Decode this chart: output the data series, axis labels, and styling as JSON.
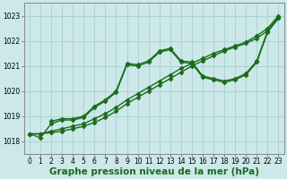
{
  "xlabel": "Graphe pression niveau de la mer (hPa)",
  "background_color": "#cce8e8",
  "grid_color": "#aad4d4",
  "line_color": "#1a6b1a",
  "xlim": [
    -0.5,
    23.5
  ],
  "ylim": [
    1017.5,
    1023.5
  ],
  "xticks": [
    0,
    1,
    2,
    3,
    4,
    5,
    6,
    7,
    8,
    9,
    10,
    11,
    12,
    13,
    14,
    15,
    16,
    17,
    18,
    19,
    20,
    21,
    22,
    23
  ],
  "yticks": [
    1018,
    1019,
    1020,
    1021,
    1022,
    1023
  ],
  "lines": [
    {
      "x": [
        0,
        1,
        2,
        3,
        4,
        5,
        6,
        7,
        8,
        9,
        10,
        11,
        12,
        13,
        14,
        15,
        16,
        17,
        18,
        19,
        20,
        21,
        22,
        23
      ],
      "y": [
        1018.3,
        1018.3,
        1018.35,
        1018.4,
        1018.5,
        1018.6,
        1018.75,
        1018.95,
        1019.2,
        1019.5,
        1019.75,
        1020.0,
        1020.25,
        1020.5,
        1020.75,
        1021.0,
        1021.2,
        1021.4,
        1021.6,
        1021.75,
        1021.9,
        1022.1,
        1022.4,
        1022.9
      ]
    },
    {
      "x": [
        0,
        1,
        2,
        3,
        4,
        5,
        6,
        7,
        8,
        9,
        10,
        11,
        12,
        13,
        14,
        15,
        16,
        17,
        18,
        19,
        20,
        21,
        22,
        23
      ],
      "y": [
        1018.3,
        1018.3,
        1018.4,
        1018.5,
        1018.6,
        1018.7,
        1018.9,
        1019.1,
        1019.35,
        1019.65,
        1019.9,
        1020.15,
        1020.4,
        1020.65,
        1020.9,
        1021.1,
        1021.3,
        1021.5,
        1021.65,
        1021.8,
        1021.95,
        1022.2,
        1022.5,
        1023.0
      ]
    },
    {
      "x": [
        0,
        1,
        2,
        3,
        4,
        5,
        6,
        7,
        8,
        9,
        10,
        11,
        12,
        13,
        14,
        15,
        16,
        17,
        18,
        19,
        20,
        21,
        22,
        23
      ],
      "y": [
        1018.3,
        1018.15,
        1018.7,
        1018.85,
        1018.85,
        1018.95,
        1019.35,
        1019.6,
        1019.95,
        1021.05,
        1021.0,
        1021.15,
        1021.55,
        1021.65,
        1021.15,
        1021.1,
        1020.55,
        1020.45,
        1020.35,
        1020.45,
        1020.65,
        1021.15,
        1022.35,
        1022.9
      ]
    },
    {
      "x": [
        2,
        3,
        4,
        5,
        6,
        7,
        8,
        9,
        10,
        11,
        12,
        13,
        14,
        15,
        16,
        17,
        18,
        19,
        20,
        21,
        22,
        23
      ],
      "y": [
        1018.8,
        1018.9,
        1018.9,
        1019.0,
        1019.4,
        1019.65,
        1020.0,
        1021.1,
        1021.05,
        1021.2,
        1021.6,
        1021.7,
        1021.2,
        1021.15,
        1020.6,
        1020.5,
        1020.4,
        1020.5,
        1020.7,
        1021.2,
        1022.4,
        1022.95
      ]
    }
  ],
  "marker": "D",
  "markersize": 2.5,
  "linewidth": 1.0,
  "tick_fontsize": 5.5,
  "xlabel_fontsize": 7.5,
  "xlabel_fontweight": "bold"
}
